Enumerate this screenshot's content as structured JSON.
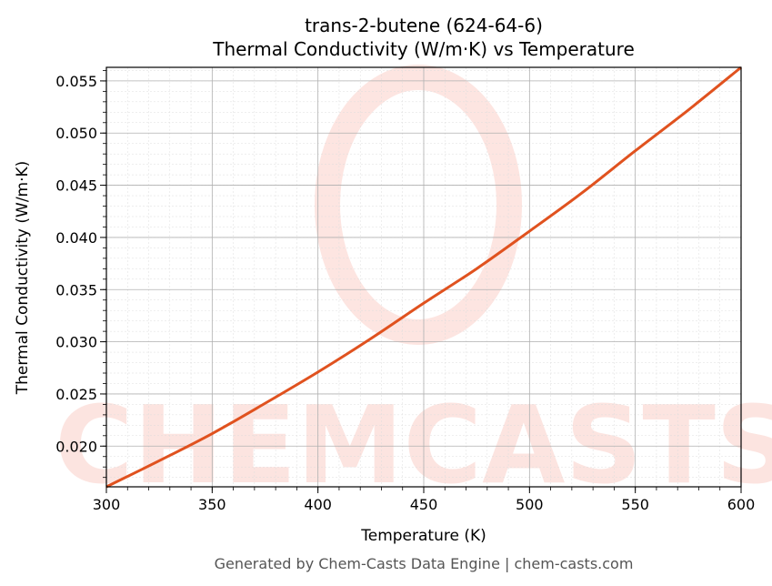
{
  "chart_data": {
    "type": "line",
    "title": "trans-2-butene (624-64-6)",
    "subtitle": "Thermal Conductivity (W/m·K) vs Temperature",
    "xlabel": "Temperature (K)",
    "ylabel": "Thermal Conductivity (W/m·K)",
    "xlim": [
      300,
      600
    ],
    "ylim": [
      0.0161,
      0.0563
    ],
    "xticks": [
      300,
      350,
      400,
      450,
      500,
      550,
      600
    ],
    "xtick_labels": [
      "300",
      "350",
      "400",
      "450",
      "500",
      "550",
      "600"
    ],
    "yticks": [
      0.02,
      0.025,
      0.03,
      0.035,
      0.04,
      0.045,
      0.05,
      0.055
    ],
    "ytick_labels": [
      "0.020",
      "0.025",
      "0.030",
      "0.035",
      "0.040",
      "0.045",
      "0.050",
      "0.055"
    ],
    "grid": true,
    "series": [
      {
        "x": [
          300,
          325,
          350,
          375,
          400,
          425,
          450,
          475,
          500,
          525,
          550,
          575,
          600
        ],
        "y": [
          0.0161,
          0.0186,
          0.0212,
          0.0241,
          0.0271,
          0.0303,
          0.0337,
          0.037,
          0.0406,
          0.0443,
          0.0483,
          0.0522,
          0.0563
        ],
        "color": "#e0521f"
      }
    ]
  },
  "watermark": "CHEMCASTS",
  "footer": "Generated by Chem-Casts Data Engine | chem-casts.com"
}
